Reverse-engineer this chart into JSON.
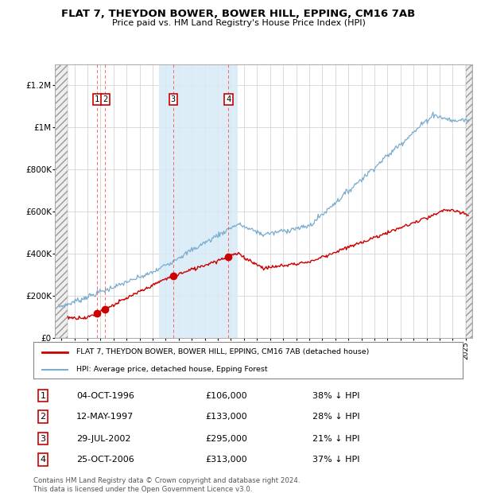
{
  "title": "FLAT 7, THEYDON BOWER, BOWER HILL, EPPING, CM16 7AB",
  "subtitle": "Price paid vs. HM Land Registry's House Price Index (HPI)",
  "ylim": [
    0,
    1300000
  ],
  "xlim_start": 1993.5,
  "xlim_end": 2025.5,
  "yticks": [
    0,
    200000,
    400000,
    600000,
    800000,
    1000000,
    1200000
  ],
  "ytick_labels": [
    "£0",
    "£200K",
    "£400K",
    "£600K",
    "£800K",
    "£1M",
    "£1.2M"
  ],
  "xticks": [
    1994,
    1995,
    1996,
    1997,
    1998,
    1999,
    2000,
    2001,
    2002,
    2003,
    2004,
    2005,
    2006,
    2007,
    2008,
    2009,
    2010,
    2011,
    2012,
    2013,
    2014,
    2015,
    2016,
    2017,
    2018,
    2019,
    2020,
    2021,
    2022,
    2023,
    2024,
    2025
  ],
  "hatch_left_end": 1994.5,
  "hatch_right_start": 2025.0,
  "shade_region": [
    [
      2001.5,
      2007.5
    ]
  ],
  "transactions": [
    {
      "date": 1996.75,
      "price": 106000,
      "label": "1"
    },
    {
      "date": 1997.36,
      "price": 133000,
      "label": "2"
    },
    {
      "date": 2002.57,
      "price": 295000,
      "label": "3"
    },
    {
      "date": 2006.81,
      "price": 313000,
      "label": "4"
    }
  ],
  "red_line_color": "#cc0000",
  "blue_line_color": "#7aadcf",
  "legend_entry1": "FLAT 7, THEYDON BOWER, BOWER HILL, EPPING, CM16 7AB (detached house)",
  "legend_entry2": "HPI: Average price, detached house, Epping Forest",
  "table_data": [
    {
      "num": "1",
      "date": "04-OCT-1996",
      "price": "£106,000",
      "pct": "38% ↓ HPI"
    },
    {
      "num": "2",
      "date": "12-MAY-1997",
      "price": "£133,000",
      "pct": "28% ↓ HPI"
    },
    {
      "num": "3",
      "date": "29-JUL-2002",
      "price": "£295,000",
      "pct": "21% ↓ HPI"
    },
    {
      "num": "4",
      "date": "25-OCT-2006",
      "price": "£313,000",
      "pct": "37% ↓ HPI"
    }
  ],
  "footer": "Contains HM Land Registry data © Crown copyright and database right 2024.\nThis data is licensed under the Open Government Licence v3.0.",
  "background_color": "#ffffff",
  "grid_color": "#cccccc",
  "shade_color": "#ddeeff"
}
